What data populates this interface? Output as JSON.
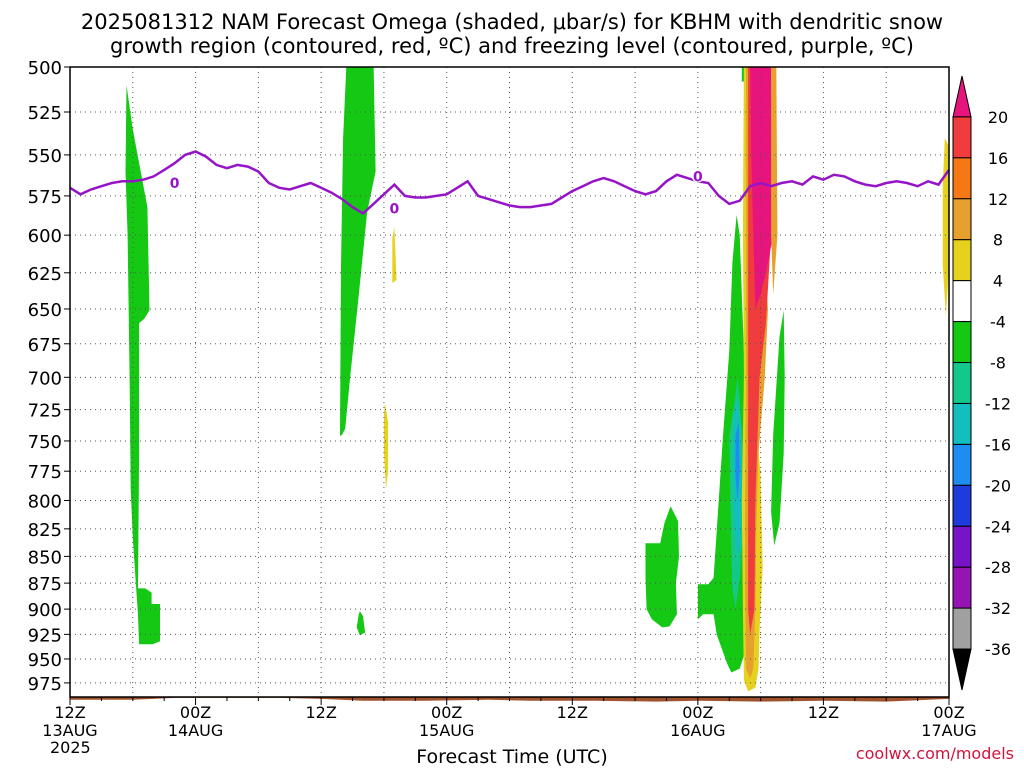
{
  "title_line1": "2025081312 NAM Forecast Omega (shaded, μbar/s) for KBHM with dendritic snow",
  "title_line2": "growth region (contoured, red, ºC) and freezing level (contoured, purple, ºC)",
  "credit": "coolwx.com/models",
  "chart_data": {
    "type": "heatmap",
    "xlabel": "Forecast Time (UTC)",
    "x_ticks": [
      {
        "h": 0,
        "label": "12Z",
        "sub": "13AUG"
      },
      {
        "h": 12,
        "label": "00Z",
        "sub": "14AUG"
      },
      {
        "h": 24,
        "label": "12Z",
        "sub": ""
      },
      {
        "h": 36,
        "label": "00Z",
        "sub": "15AUG"
      },
      {
        "h": 48,
        "label": "12Z",
        "sub": ""
      },
      {
        "h": 60,
        "label": "00Z",
        "sub": "16AUG"
      },
      {
        "h": 72,
        "label": "12Z",
        "sub": ""
      },
      {
        "h": 84,
        "label": "00Z",
        "sub": "17AUG"
      }
    ],
    "year_label": "2025",
    "xlim": [
      0,
      84
    ],
    "y_ticks": [
      500,
      525,
      550,
      575,
      600,
      625,
      650,
      675,
      700,
      725,
      750,
      775,
      800,
      825,
      850,
      875,
      900,
      925,
      950,
      975
    ],
    "ylim": [
      500,
      990
    ],
    "colorbar": {
      "levels": [
        20,
        16,
        12,
        8,
        4,
        -4,
        -8,
        -12,
        -16,
        -20,
        -24,
        -28,
        -32,
        -36
      ],
      "colors": [
        "#e8147d",
        "#f03c3c",
        "#f57814",
        "#e6a02d",
        "#e6d21e",
        "#ffffff",
        "#14c814",
        "#14c88c",
        "#14bebe",
        "#1e8cf0",
        "#1e3cdc",
        "#7814c8",
        "#9614b4",
        "#a0a0a0",
        "#000000"
      ]
    },
    "freezing_level": {
      "label": "0",
      "points": [
        [
          0,
          570
        ],
        [
          1,
          574
        ],
        [
          2,
          571
        ],
        [
          3,
          569
        ],
        [
          4,
          567
        ],
        [
          5,
          566
        ],
        [
          6,
          566
        ],
        [
          7,
          565
        ],
        [
          8,
          563
        ],
        [
          9,
          559
        ],
        [
          10,
          555
        ],
        [
          11,
          550
        ],
        [
          12,
          548
        ],
        [
          13,
          551
        ],
        [
          14,
          556
        ],
        [
          15,
          558
        ],
        [
          16,
          556
        ],
        [
          17,
          557
        ],
        [
          18,
          560
        ],
        [
          19,
          567
        ],
        [
          20,
          570
        ],
        [
          21,
          571
        ],
        [
          22,
          569
        ],
        [
          23,
          567
        ],
        [
          24,
          570
        ],
        [
          25,
          573
        ],
        [
          26,
          577
        ],
        [
          27,
          582
        ],
        [
          28,
          586
        ],
        [
          29,
          580
        ],
        [
          30,
          574
        ],
        [
          31,
          568
        ],
        [
          32,
          575
        ],
        [
          33,
          576
        ],
        [
          34,
          576
        ],
        [
          35,
          575
        ],
        [
          36,
          574
        ],
        [
          37,
          570
        ],
        [
          38,
          566
        ],
        [
          39,
          575
        ],
        [
          40,
          577
        ],
        [
          41,
          579
        ],
        [
          42,
          581
        ],
        [
          43,
          582
        ],
        [
          44,
          582
        ],
        [
          45,
          581
        ],
        [
          46,
          580
        ],
        [
          47,
          576
        ],
        [
          48,
          572
        ],
        [
          49,
          569
        ],
        [
          50,
          566
        ],
        [
          51,
          564
        ],
        [
          52,
          566
        ],
        [
          53,
          569
        ],
        [
          54,
          572
        ],
        [
          55,
          574
        ],
        [
          56,
          572
        ],
        [
          57,
          566
        ],
        [
          58,
          562
        ],
        [
          59,
          564
        ],
        [
          60,
          566
        ],
        [
          61,
          567
        ],
        [
          62,
          575
        ],
        [
          63,
          580
        ],
        [
          64,
          578
        ],
        [
          65,
          569
        ],
        [
          66,
          567
        ],
        [
          67,
          569
        ],
        [
          68,
          567
        ],
        [
          69,
          566
        ],
        [
          70,
          568
        ],
        [
          71,
          563
        ],
        [
          72,
          565
        ],
        [
          73,
          562
        ],
        [
          74,
          563
        ],
        [
          75,
          566
        ],
        [
          76,
          568
        ],
        [
          77,
          569
        ],
        [
          78,
          567
        ],
        [
          79,
          566
        ],
        [
          80,
          567
        ],
        [
          81,
          569
        ],
        [
          82,
          566
        ],
        [
          83,
          568
        ],
        [
          84,
          559
        ]
      ]
    },
    "shaded_regions": [
      {
        "color": "#14c814",
        "points": [
          [
            5.4,
            510
          ],
          [
            6.0,
            535
          ],
          [
            7.4,
            582
          ],
          [
            7.6,
            651
          ],
          [
            7.1,
            657
          ],
          [
            6.6,
            660
          ],
          [
            6.6,
            762
          ],
          [
            6.5,
            880
          ],
          [
            7.1,
            880
          ],
          [
            7.2,
            880
          ],
          [
            7.8,
            884
          ],
          [
            7.8,
            895
          ],
          [
            8.6,
            895
          ],
          [
            8.6,
            932
          ],
          [
            7.9,
            935
          ],
          [
            7.1,
            935
          ],
          [
            6.6,
            935
          ],
          [
            6.5,
            906
          ],
          [
            6.3,
            876
          ],
          [
            6.0,
            833
          ],
          [
            5.8,
            790
          ],
          [
            5.7,
            700
          ],
          [
            5.5,
            600
          ],
          [
            5.3,
            560
          ],
          [
            5.4,
            510
          ]
        ]
      },
      {
        "color": "#14c814",
        "points": [
          [
            26.7,
            496
          ],
          [
            29.0,
            496
          ],
          [
            29.2,
            560
          ],
          [
            28.4,
            585
          ],
          [
            27.6,
            640
          ],
          [
            26.8,
            698
          ],
          [
            26.3,
            740
          ],
          [
            26.0,
            745
          ],
          [
            25.8,
            746
          ],
          [
            25.9,
            620
          ],
          [
            26.1,
            540
          ],
          [
            26.4,
            500
          ]
        ]
      },
      {
        "color": "#14c814",
        "points": [
          [
            27.7,
            902
          ],
          [
            28.0,
            907
          ],
          [
            28.2,
            923
          ],
          [
            27.7,
            926
          ],
          [
            27.4,
            918
          ],
          [
            27.6,
            905
          ]
        ]
      },
      {
        "color": "#e6d21e",
        "points": [
          [
            30.8,
            602
          ],
          [
            31.0,
            595
          ],
          [
            31.2,
            630
          ],
          [
            30.8,
            632
          ]
        ]
      },
      {
        "color": "#e6d21e",
        "points": [
          [
            30.1,
            720
          ],
          [
            30.4,
            735
          ],
          [
            30.4,
            775
          ],
          [
            30.2,
            790
          ],
          [
            30.0,
            760
          ],
          [
            30.0,
            730
          ]
        ]
      },
      {
        "color": "#14c814",
        "points": [
          [
            55.0,
            838
          ],
          [
            56.4,
            838
          ],
          [
            56.8,
            820
          ],
          [
            57.4,
            805
          ],
          [
            58.1,
            818
          ],
          [
            58.2,
            850
          ],
          [
            57.9,
            875
          ],
          [
            58.0,
            905
          ],
          [
            57.3,
            917
          ],
          [
            56.6,
            918
          ],
          [
            55.6,
            910
          ],
          [
            55.1,
            900
          ],
          [
            55.0,
            870
          ]
        ]
      },
      {
        "color": "#14c814",
        "points": [
          [
            60.0,
            876
          ],
          [
            61.0,
            876
          ],
          [
            61.5,
            870
          ],
          [
            62.4,
            746
          ],
          [
            63.0,
            680
          ],
          [
            63.3,
            618
          ],
          [
            63.7,
            587
          ],
          [
            64.0,
            600
          ],
          [
            64.4,
            680
          ],
          [
            64.8,
            700
          ],
          [
            65.0,
            760
          ],
          [
            65.4,
            820
          ],
          [
            65.0,
            880
          ],
          [
            64.6,
            940
          ],
          [
            64.0,
            960
          ],
          [
            63.2,
            964
          ],
          [
            62.8,
            955
          ],
          [
            61.8,
            925
          ],
          [
            61.5,
            905
          ],
          [
            60.5,
            905
          ],
          [
            60.0,
            910
          ]
        ]
      },
      {
        "color": "#14c88c",
        "points": [
          [
            63.0,
            746
          ],
          [
            63.5,
            720
          ],
          [
            63.8,
            700
          ],
          [
            64.2,
            740
          ],
          [
            64.4,
            780
          ],
          [
            64.3,
            830
          ],
          [
            64.0,
            870
          ],
          [
            63.6,
            900
          ],
          [
            63.3,
            880
          ],
          [
            63.1,
            800
          ]
        ]
      },
      {
        "color": "#14bebe",
        "points": [
          [
            63.4,
            730
          ],
          [
            63.7,
            715
          ],
          [
            64.0,
            740
          ],
          [
            64.2,
            790
          ],
          [
            64.0,
            840
          ],
          [
            63.7,
            850
          ],
          [
            63.4,
            800
          ]
        ]
      },
      {
        "color": "#1e8cf0",
        "points": [
          [
            63.6,
            745
          ],
          [
            63.9,
            735
          ],
          [
            64.0,
            775
          ],
          [
            63.8,
            800
          ],
          [
            63.6,
            780
          ]
        ]
      },
      {
        "color": "#14c814",
        "points": [
          [
            67.8,
            670
          ],
          [
            68.2,
            651
          ],
          [
            68.3,
            700
          ],
          [
            68.2,
            760
          ],
          [
            67.8,
            820
          ],
          [
            67.3,
            840
          ],
          [
            67.0,
            810
          ],
          [
            67.2,
            745
          ]
        ]
      },
      {
        "color": "#e6d21e",
        "points": [
          [
            64.4,
            496
          ],
          [
            65.3,
            496
          ],
          [
            65.3,
            700
          ],
          [
            66.0,
            780
          ],
          [
            66.2,
            860
          ],
          [
            65.9,
            920
          ],
          [
            65.8,
            960
          ],
          [
            65.5,
            980
          ],
          [
            64.8,
            984
          ],
          [
            64.4,
            972
          ],
          [
            64.3,
            900
          ],
          [
            64.2,
            800
          ],
          [
            64.4,
            700
          ],
          [
            64.3,
            600
          ]
        ]
      },
      {
        "color": "#e6a02d",
        "points": [
          [
            64.6,
            496
          ],
          [
            65.3,
            496
          ],
          [
            65.8,
            540
          ],
          [
            66.2,
            600
          ],
          [
            66.7,
            650
          ],
          [
            66.4,
            700
          ],
          [
            65.8,
            760
          ],
          [
            65.6,
            820
          ],
          [
            65.5,
            900
          ],
          [
            65.3,
            960
          ],
          [
            65.0,
            970
          ],
          [
            64.6,
            960
          ],
          [
            64.5,
            850
          ],
          [
            64.6,
            700
          ]
        ]
      },
      {
        "color": "#f03c3c",
        "points": [
          [
            64.8,
            496
          ],
          [
            66.7,
            496
          ],
          [
            67.0,
            600
          ],
          [
            66.5,
            660
          ],
          [
            65.9,
            700
          ],
          [
            65.5,
            800
          ],
          [
            65.4,
            900
          ],
          [
            65.0,
            925
          ],
          [
            64.8,
            900
          ],
          [
            64.8,
            700
          ]
        ]
      },
      {
        "color": "#e8147d",
        "points": [
          [
            65.0,
            496
          ],
          [
            67.0,
            496
          ],
          [
            67.2,
            600
          ],
          [
            66.5,
            625
          ],
          [
            66.0,
            640
          ],
          [
            65.5,
            650
          ],
          [
            65.3,
            600
          ],
          [
            65.1,
            550
          ]
        ]
      },
      {
        "color": "#e6a02d",
        "points": [
          [
            67.0,
            496
          ],
          [
            67.5,
            496
          ],
          [
            67.6,
            600
          ],
          [
            67.2,
            640
          ],
          [
            67.0,
            600
          ]
        ]
      },
      {
        "color": "#e6d21e",
        "points": [
          [
            83.6,
            540
          ],
          [
            84.0,
            545
          ],
          [
            84.0,
            620
          ],
          [
            83.7,
            655
          ],
          [
            83.4,
            620
          ],
          [
            83.4,
            570
          ]
        ]
      },
      {
        "color": "#14c814",
        "points": [
          [
            64.2,
            497
          ],
          [
            64.4,
            497
          ],
          [
            64.4,
            508
          ],
          [
            64.2,
            508
          ]
        ]
      }
    ],
    "terrain": {
      "color": "#a0522d",
      "top": [
        [
          0,
          993
        ],
        [
          6,
          993
        ],
        [
          8,
          992
        ],
        [
          10,
          991
        ],
        [
          14,
          991
        ],
        [
          20,
          991
        ],
        [
          24,
          992
        ],
        [
          28,
          994
        ],
        [
          34,
          994
        ],
        [
          40,
          993
        ],
        [
          44,
          994
        ],
        [
          50,
          994
        ],
        [
          56,
          995
        ],
        [
          60,
          994
        ],
        [
          66,
          995
        ],
        [
          72,
          994
        ],
        [
          78,
          995
        ],
        [
          84,
          992
        ]
      ]
    }
  }
}
